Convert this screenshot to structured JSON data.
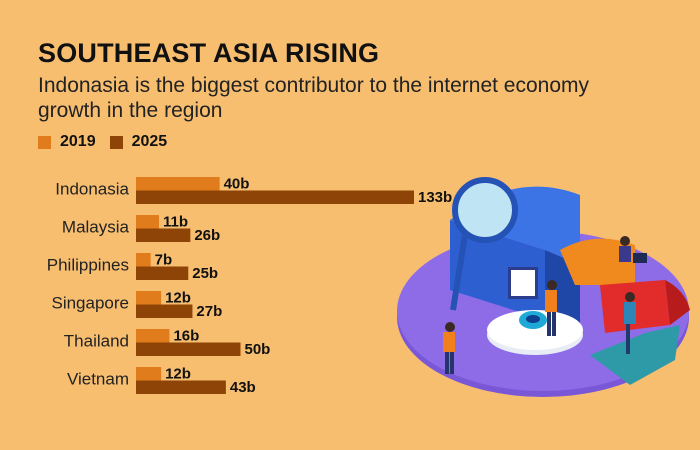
{
  "title": "SOUTHEAST ASIA RISING",
  "subtitle": "Indonasia is the biggest contributor to the internet economy growth in the region",
  "colors": {
    "background": "#F7BE70",
    "series_2019": "#E07C1B",
    "series_2025": "#8E4406"
  },
  "chart_data": {
    "type": "bar",
    "orientation": "horizontal",
    "title": "SOUTHEAST ASIA RISING",
    "subtitle": "Indonasia is the biggest contributor to the internet economy growth in the region",
    "categories": [
      "Indonasia",
      "Malaysia",
      "Philippines",
      "Singapore",
      "Thailand",
      "Vietnam"
    ],
    "series": [
      {
        "name": "2019",
        "values": [
          40,
          11,
          7,
          12,
          16,
          12
        ],
        "labels": [
          "40b",
          "11b",
          "7b",
          "12b",
          "16b",
          "12b"
        ]
      },
      {
        "name": "2025",
        "values": [
          133,
          26,
          25,
          27,
          50,
          43
        ],
        "labels": [
          "133b",
          "26b",
          "25b",
          "27b",
          "50b",
          "43b"
        ]
      }
    ],
    "xlabel": "",
    "ylabel": "",
    "xlim": [
      0,
      133
    ],
    "grid": false,
    "legend": "top-left"
  }
}
